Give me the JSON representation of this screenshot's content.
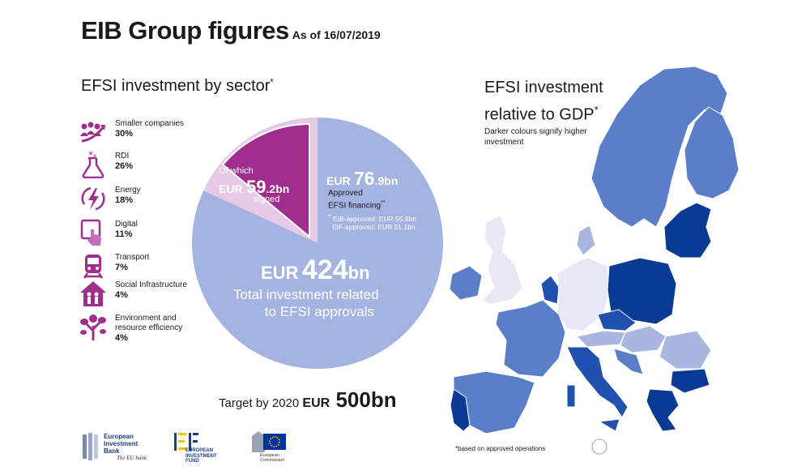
{
  "header": {
    "title": "EIB Group figures",
    "subtitle": "As of 16/07/2019"
  },
  "sectors": {
    "heading": "EFSI investment by sector",
    "heading_mark": "*",
    "items": [
      {
        "label": "Smaller companies",
        "pct": "30%",
        "icon": "people-growth-icon"
      },
      {
        "label": "RDI",
        "pct": "26%",
        "icon": "flask-icon"
      },
      {
        "label": "Energy",
        "pct": "18%",
        "icon": "lightning-icon"
      },
      {
        "label": "Digital",
        "pct": "11%",
        "icon": "touchscreen-icon"
      },
      {
        "label": "Transport",
        "pct": "7%",
        "icon": "train-icon"
      },
      {
        "label": "Social Infrastructure",
        "pct": "4%",
        "icon": "house-family-icon"
      },
      {
        "label": "Environment and resource efficiency",
        "pct": "4%",
        "icon": "tree-icon"
      }
    ]
  },
  "chart_data": {
    "type": "pie",
    "total": {
      "prefix": "EUR",
      "value": 424,
      "unit": "bn",
      "label_line1": "Total investment related",
      "label_line2": "to EFSI approvals"
    },
    "approved": {
      "prefix": "EUR",
      "int": "76",
      "dec": ".9",
      "unit": "bn",
      "value": 76.9,
      "label_line1": "Approved",
      "label_line2": "EFSI financing",
      "mark": "**"
    },
    "signed": {
      "of_which": "Of which",
      "prefix": "EUR",
      "int": "59",
      "dec": ".2",
      "unit": "bn",
      "value": 59.2,
      "label": "signed"
    },
    "breakdown": {
      "mark": "**",
      "eib": "EIB-approved: EUR 55.8bn",
      "eif": "EIF-approved: EUR 21.1bn"
    },
    "colors": {
      "total": "#a5b3e0",
      "approved": "#e7c8e6",
      "signed": "#a02e8c"
    }
  },
  "target": {
    "label": "Target by 2020",
    "prefix": "EUR",
    "value": "500",
    "unit": "bn"
  },
  "map": {
    "heading_line1": "EFSI investment",
    "heading_line2": "relative to GDP",
    "heading_mark": "*",
    "note": "Darker colours signify higher investment",
    "footnote": "*based on approved operations",
    "colors": {
      "darkest": "#0a3a94",
      "dark": "#2150b0",
      "medium": "#5a7ec8",
      "light": "#a9b7e0",
      "lightest": "#e6e8f6"
    }
  },
  "logos": {
    "eib": {
      "line1": "European",
      "line2": "Investment",
      "line3": "Bank",
      "tagline": "The EU bank"
    },
    "eif": {
      "line1": "EUROPEAN",
      "line2": "INVESTMENT",
      "line3": "FUND"
    },
    "ec": {
      "line1": "European",
      "line2": "Commission"
    }
  }
}
